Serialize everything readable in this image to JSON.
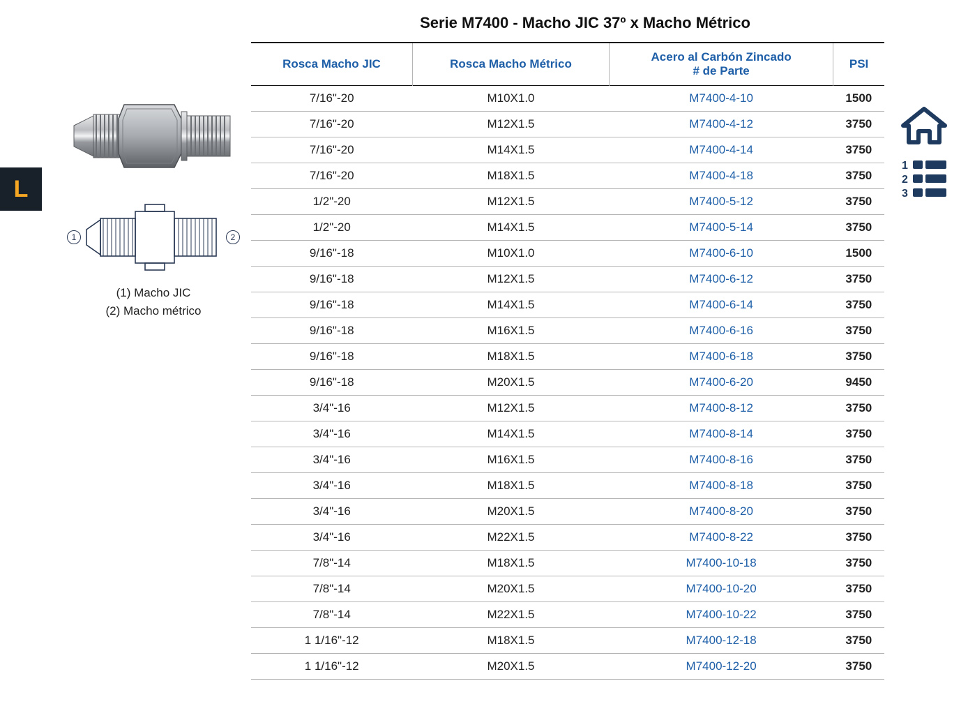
{
  "sideTab": {
    "label": "L",
    "bg": "#18202a",
    "fg": "#f5a623"
  },
  "title": "Serie M7400 - Macho JIC 37º x Macho Métrico",
  "legend": {
    "line1": "(1) Macho JIC",
    "line2": "(2) Macho métrico",
    "label1": "1",
    "label2": "2"
  },
  "navIcons": {
    "home": "home-icon",
    "index": "index-icon",
    "color": "#1e3a5f"
  },
  "table": {
    "headerColor": "#1e5fa8",
    "partColor": "#1e5fa8",
    "borderColor": "#b5b5b5",
    "columns": [
      {
        "label": "Rosca Macho JIC"
      },
      {
        "label": "Rosca Macho Métrico"
      },
      {
        "label": "Acero al Carbón Zincado",
        "sub": "# de Parte"
      },
      {
        "label": "PSI"
      }
    ],
    "rows": [
      {
        "jic": "7/16\"-20",
        "metric": "M10X1.0",
        "part": "M7400-4-10",
        "psi": "1500"
      },
      {
        "jic": "7/16\"-20",
        "metric": "M12X1.5",
        "part": "M7400-4-12",
        "psi": "3750"
      },
      {
        "jic": "7/16\"-20",
        "metric": "M14X1.5",
        "part": "M7400-4-14",
        "psi": "3750"
      },
      {
        "jic": "7/16\"-20",
        "metric": "M18X1.5",
        "part": "M7400-4-18",
        "psi": "3750"
      },
      {
        "jic": "1/2\"-20",
        "metric": "M12X1.5",
        "part": "M7400-5-12",
        "psi": "3750"
      },
      {
        "jic": "1/2\"-20",
        "metric": "M14X1.5",
        "part": "M7400-5-14",
        "psi": "3750"
      },
      {
        "jic": "9/16\"-18",
        "metric": "M10X1.0",
        "part": "M7400-6-10",
        "psi": "1500"
      },
      {
        "jic": "9/16\"-18",
        "metric": "M12X1.5",
        "part": "M7400-6-12",
        "psi": "3750"
      },
      {
        "jic": "9/16\"-18",
        "metric": "M14X1.5",
        "part": "M7400-6-14",
        "psi": "3750"
      },
      {
        "jic": "9/16\"-18",
        "metric": "M16X1.5",
        "part": "M7400-6-16",
        "psi": "3750"
      },
      {
        "jic": "9/16\"-18",
        "metric": "M18X1.5",
        "part": "M7400-6-18",
        "psi": "3750"
      },
      {
        "jic": "9/16\"-18",
        "metric": "M20X1.5",
        "part": "M7400-6-20",
        "psi": "9450"
      },
      {
        "jic": "3/4\"-16",
        "metric": "M12X1.5",
        "part": "M7400-8-12",
        "psi": "3750"
      },
      {
        "jic": "3/4\"-16",
        "metric": "M14X1.5",
        "part": "M7400-8-14",
        "psi": "3750"
      },
      {
        "jic": "3/4\"-16",
        "metric": "M16X1.5",
        "part": "M7400-8-16",
        "psi": "3750"
      },
      {
        "jic": "3/4\"-16",
        "metric": "M18X1.5",
        "part": "M7400-8-18",
        "psi": "3750"
      },
      {
        "jic": "3/4\"-16",
        "metric": "M20X1.5",
        "part": "M7400-8-20",
        "psi": "3750"
      },
      {
        "jic": "3/4\"-16",
        "metric": "M22X1.5",
        "part": "M7400-8-22",
        "psi": "3750"
      },
      {
        "jic": "7/8\"-14",
        "metric": "M18X1.5",
        "part": "M7400-10-18",
        "psi": "3750"
      },
      {
        "jic": "7/8\"-14",
        "metric": "M20X1.5",
        "part": "M7400-10-20",
        "psi": "3750"
      },
      {
        "jic": "7/8\"-14",
        "metric": "M22X1.5",
        "part": "M7400-10-22",
        "psi": "3750"
      },
      {
        "jic": "1 1/16\"-12",
        "metric": "M18X1.5",
        "part": "M7400-12-18",
        "psi": "3750"
      },
      {
        "jic": "1 1/16\"-12",
        "metric": "M20X1.5",
        "part": "M7400-12-20",
        "psi": "3750"
      }
    ]
  }
}
